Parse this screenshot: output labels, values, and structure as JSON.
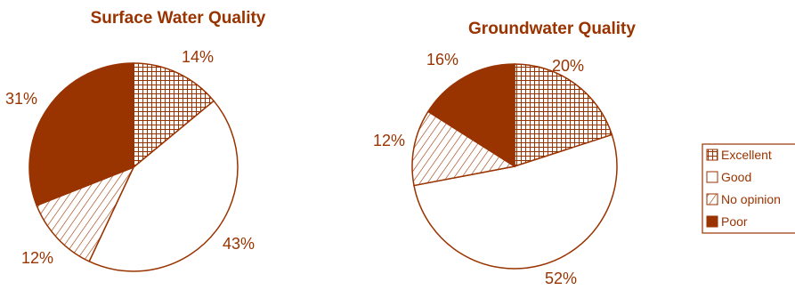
{
  "colors": {
    "accent": "#993300",
    "background": "#ffffff"
  },
  "legend": {
    "items": [
      {
        "label": "Excellent",
        "fill": "grid"
      },
      {
        "label": "Good",
        "fill": "blank"
      },
      {
        "label": "No opinion",
        "fill": "hatch"
      },
      {
        "label": "Poor",
        "fill": "solid"
      }
    ]
  },
  "chart_data": [
    {
      "type": "pie",
      "title": "Surface Water Quality",
      "categories": [
        "Excellent",
        "Good",
        "No opinion",
        "Poor"
      ],
      "values": [
        14,
        43,
        12,
        31
      ],
      "labels": [
        "14%",
        "43%",
        "12%",
        "31%"
      ]
    },
    {
      "type": "pie",
      "title": "Groundwater Quality",
      "categories": [
        "Excellent",
        "Good",
        "No opinion",
        "Poor"
      ],
      "values": [
        20,
        52,
        12,
        16
      ],
      "labels": [
        "20%",
        "52%",
        "12%",
        "16%"
      ]
    }
  ]
}
